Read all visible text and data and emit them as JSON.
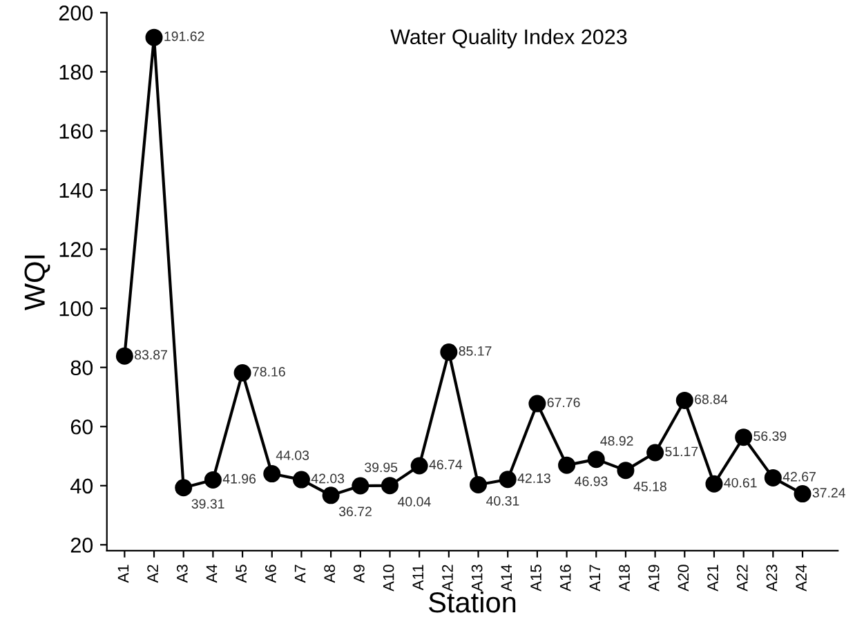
{
  "chart_data": {
    "type": "line",
    "title": "Water Quality Index 2023",
    "xlabel": "Station",
    "ylabel": "WQI",
    "categories": [
      "A1",
      "A2",
      "A3",
      "A4",
      "A5",
      "A6",
      "A7",
      "A8",
      "A9",
      "A10",
      "A11",
      "A12",
      "A13",
      "A14",
      "A15",
      "A16",
      "A17",
      "A18",
      "A19",
      "A20",
      "A21",
      "A22",
      "A23",
      "A24"
    ],
    "values": [
      83.87,
      191.62,
      39.31,
      41.96,
      78.16,
      44.03,
      42.03,
      36.72,
      39.95,
      40.04,
      46.74,
      85.17,
      40.31,
      42.13,
      67.76,
      46.93,
      48.92,
      45.18,
      51.17,
      68.84,
      40.61,
      56.39,
      42.67,
      37.24
    ],
    "color": "#000000",
    "marker": "circle",
    "line_style": "solid",
    "data_labels": true,
    "grid": false,
    "legend": false,
    "ylim": [
      18,
      200
    ],
    "yticks": [
      20,
      40,
      60,
      80,
      100,
      120,
      140,
      160,
      180,
      200
    ]
  }
}
